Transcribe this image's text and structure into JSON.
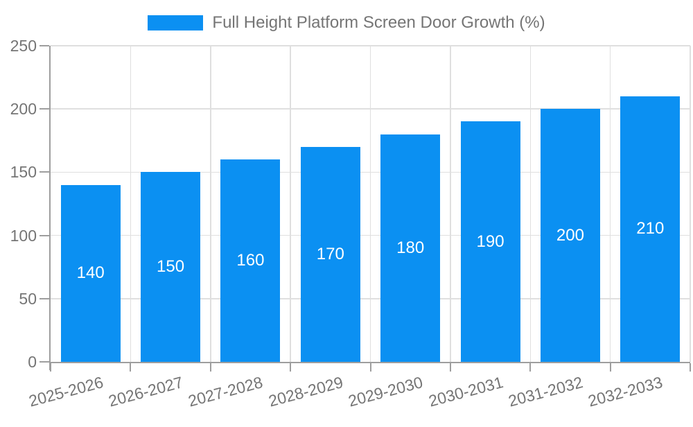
{
  "chart_data": {
    "type": "bar",
    "title": "Full Height Platform Screen Door Growth (%)",
    "categories": [
      "2025-2026",
      "2026-2027",
      "2027-2028",
      "2028-2029",
      "2029-2030",
      "2030-2031",
      "2031-2032",
      "2032-2033"
    ],
    "values": [
      140,
      150,
      160,
      170,
      180,
      190,
      200,
      210
    ],
    "xlabel": "",
    "ylabel": "",
    "ylim": [
      0,
      250
    ],
    "yticks": [
      0,
      50,
      100,
      150,
      200,
      250
    ],
    "grid": true,
    "legend_position": "top",
    "colors": {
      "bar": "#0b90f2",
      "value_label": "#ffffff",
      "axis": "#9e9e9e",
      "gridline": "#dfdfdf",
      "tick_label": "#757575",
      "legend_text": "#757575"
    }
  }
}
